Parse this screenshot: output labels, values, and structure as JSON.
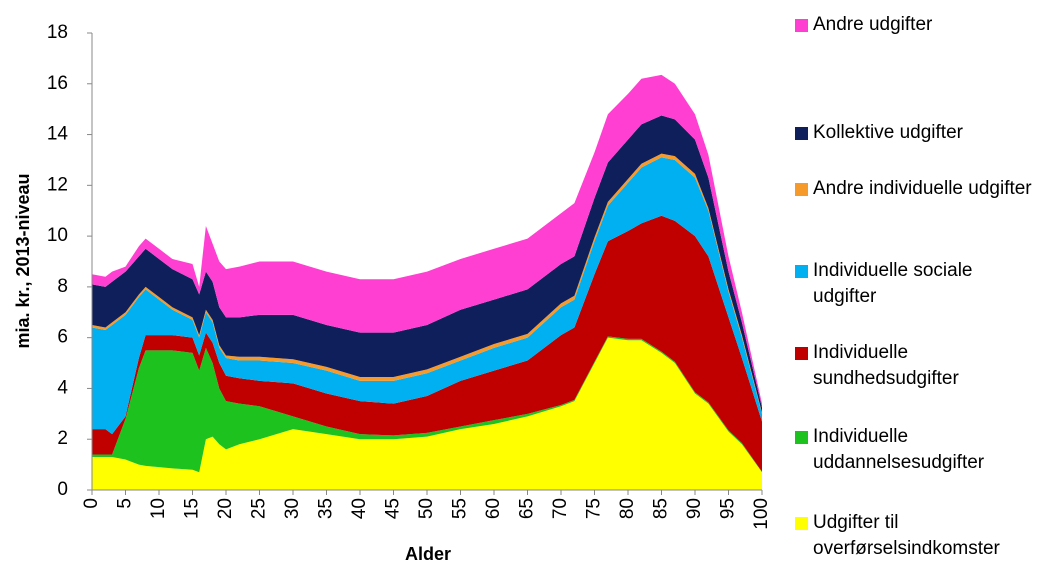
{
  "chart_data": {
    "type": "stacked-area",
    "x_label": "Alder",
    "y_label": "mia. kr., 2013-niveau",
    "x": [
      0,
      2,
      3,
      5,
      7,
      8,
      10,
      12,
      15,
      16,
      17,
      18,
      19,
      20,
      22,
      25,
      30,
      35,
      40,
      45,
      50,
      55,
      60,
      65,
      70,
      72,
      75,
      77,
      80,
      82,
      85,
      87,
      90,
      92,
      95,
      97,
      100
    ],
    "xlim": [
      0,
      100
    ],
    "xticks": [
      0,
      5,
      10,
      15,
      20,
      25,
      30,
      35,
      40,
      45,
      50,
      55,
      60,
      65,
      70,
      75,
      80,
      85,
      90,
      95,
      100
    ],
    "ylim": [
      0,
      18
    ],
    "yticks": [
      0,
      2,
      4,
      6,
      8,
      10,
      12,
      14,
      16,
      18
    ],
    "series": [
      {
        "name": "Udgifter til overførselsindkomster",
        "color": "#ffff00",
        "values": [
          1.3,
          1.3,
          1.3,
          1.2,
          1.0,
          0.95,
          0.9,
          0.85,
          0.8,
          0.7,
          2.0,
          2.1,
          1.8,
          1.6,
          1.8,
          2.0,
          2.4,
          2.2,
          2.0,
          2.0,
          2.1,
          2.4,
          2.6,
          2.9,
          3.3,
          3.5,
          5.0,
          6.0,
          5.9,
          5.9,
          5.4,
          5.0,
          3.8,
          3.4,
          2.3,
          1.8,
          0.7
        ]
      },
      {
        "name": "Individuelle uddannelsesudgifter",
        "color": "#1ec21e",
        "values": [
          0.1,
          0.1,
          0.1,
          1.6,
          3.8,
          4.55,
          4.6,
          4.65,
          4.6,
          4.0,
          3.6,
          2.9,
          2.2,
          1.9,
          1.6,
          1.3,
          0.5,
          0.3,
          0.2,
          0.15,
          0.15,
          0.1,
          0.15,
          0.1,
          0.05,
          0.05,
          0.05,
          0.05,
          0.05,
          0.05,
          0.05,
          0.05,
          0.05,
          0.05,
          0.05,
          0.05,
          0.02
        ]
      },
      {
        "name": "Individuelle sundhedsudgifter",
        "color": "#c00000",
        "values": [
          1.0,
          1.0,
          0.8,
          0.1,
          0.4,
          0.6,
          0.6,
          0.6,
          0.6,
          0.6,
          0.6,
          0.8,
          1.0,
          1.0,
          1.0,
          1.0,
          1.3,
          1.3,
          1.3,
          1.25,
          1.45,
          1.8,
          1.95,
          2.1,
          2.75,
          2.85,
          3.45,
          3.75,
          4.25,
          4.55,
          5.35,
          5.55,
          6.15,
          5.75,
          4.45,
          3.35,
          1.98
        ]
      },
      {
        "name": "Individuelle sociale udgifter",
        "color": "#00b0f0",
        "values": [
          4.0,
          3.9,
          4.3,
          4.0,
          2.4,
          1.8,
          1.4,
          1.0,
          0.7,
          0.7,
          0.8,
          0.8,
          0.6,
          0.7,
          0.7,
          0.8,
          0.8,
          0.9,
          0.8,
          0.9,
          0.9,
          0.8,
          0.9,
          0.9,
          1.1,
          1.1,
          1.3,
          1.4,
          1.9,
          2.2,
          2.3,
          2.4,
          2.3,
          1.8,
          1.0,
          0.8,
          0.3
        ]
      },
      {
        "name": "Andre individuelle udgifter",
        "color": "#f79a2c",
        "values": [
          0.1,
          0.1,
          0.1,
          0.1,
          0.1,
          0.1,
          0.1,
          0.1,
          0.1,
          0.1,
          0.1,
          0.1,
          0.1,
          0.1,
          0.15,
          0.15,
          0.15,
          0.15,
          0.15,
          0.15,
          0.15,
          0.15,
          0.15,
          0.15,
          0.15,
          0.15,
          0.15,
          0.15,
          0.15,
          0.15,
          0.15,
          0.15,
          0.15,
          0.1,
          0.1,
          0.1,
          0.05
        ]
      },
      {
        "name": "Kollektive udgifter",
        "color": "#0e1f5b",
        "values": [
          1.6,
          1.6,
          1.6,
          1.6,
          1.5,
          1.5,
          1.5,
          1.5,
          1.5,
          1.6,
          1.5,
          1.5,
          1.5,
          1.5,
          1.55,
          1.65,
          1.75,
          1.65,
          1.75,
          1.75,
          1.75,
          1.85,
          1.75,
          1.75,
          1.55,
          1.55,
          1.55,
          1.55,
          1.55,
          1.55,
          1.5,
          1.45,
          1.35,
          1.2,
          0.7,
          0.5,
          0.2
        ]
      },
      {
        "name": "Andre udgifter",
        "color": "#ff3fd2",
        "values": [
          0.4,
          0.4,
          0.4,
          0.2,
          0.4,
          0.4,
          0.4,
          0.4,
          0.6,
          0.3,
          1.8,
          1.5,
          1.8,
          1.9,
          2.0,
          2.1,
          2.1,
          2.1,
          2.1,
          2.1,
          2.1,
          2.0,
          2.0,
          2.0,
          2.0,
          2.1,
          1.8,
          1.9,
          1.8,
          1.8,
          1.6,
          1.4,
          1.0,
          0.9,
          0.6,
          0.4,
          0.15
        ]
      }
    ]
  }
}
